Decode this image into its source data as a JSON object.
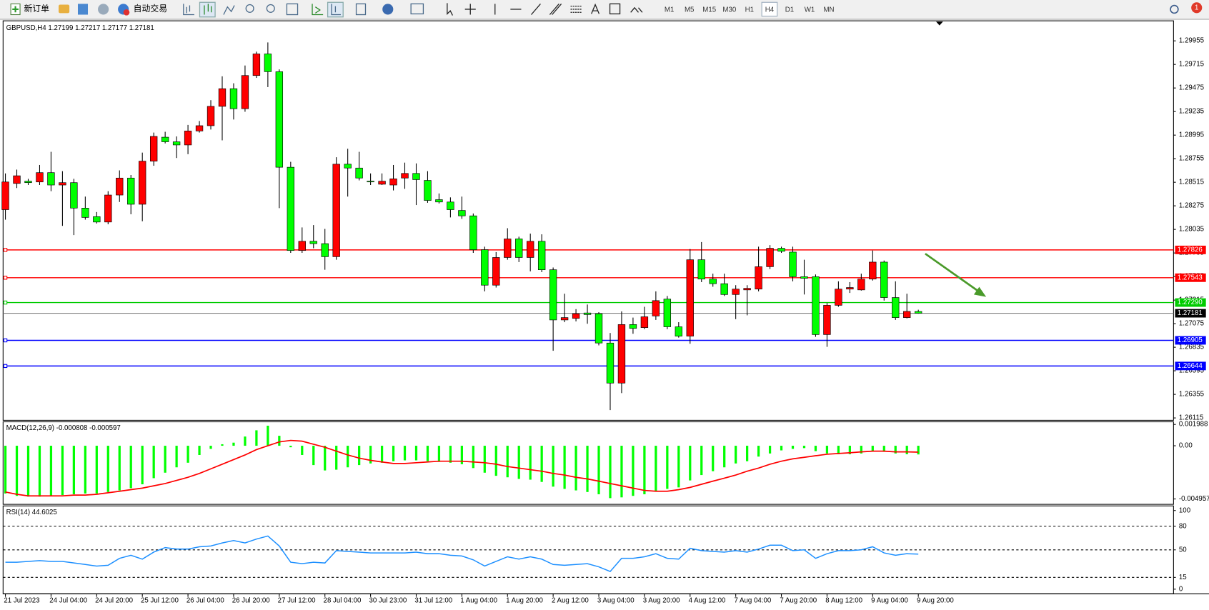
{
  "toolbar": {
    "new_order": "新订单",
    "auto_trading": "自动交易",
    "timeframes": [
      "M1",
      "M5",
      "M15",
      "M30",
      "H1",
      "H4",
      "D1",
      "W1",
      "MN"
    ],
    "selected_timeframe": "H4",
    "notifications": "1"
  },
  "chart_data": [
    {
      "type": "candlestick",
      "symbol": "GBPUSD,H4",
      "categories": [
        "21 Jul 2023",
        null,
        null,
        null,
        "24 Jul 04:00",
        null,
        null,
        null,
        "24 Jul 20:00",
        null,
        null,
        null,
        "25 Jul 12:00",
        null,
        null,
        null,
        "26 Jul 04:00",
        null,
        null,
        null,
        "26 Jul 20:00",
        null,
        null,
        null,
        "27 Jul 12:00",
        null,
        null,
        null,
        "28 Jul 04:00",
        null,
        null,
        null,
        "30 Jul 23:00",
        null,
        null,
        null,
        "31 Jul 12:00",
        null,
        null,
        null,
        "1 Aug 04:00",
        null,
        null,
        null,
        "1 Aug 20:00",
        null,
        null,
        null,
        "2 Aug 12:00",
        null,
        null,
        null,
        "3 Aug 04:00",
        null,
        null,
        null,
        "3 Aug 20:00",
        null,
        null,
        null,
        "4 Aug 12:00",
        null,
        null,
        null,
        "7 Aug 04:00",
        null,
        null,
        null,
        "7 Aug 20:00",
        null,
        null,
        null,
        "8 Aug 12:00",
        null,
        null,
        null,
        "9 Aug 04:00",
        null,
        null,
        null,
        "9 Aug 20:00"
      ],
      "open": [
        1.28236,
        1.28503,
        1.28526,
        1.28518,
        1.28613,
        1.28487,
        1.28511,
        1.28252,
        1.28165,
        1.2811,
        1.28385,
        1.28558,
        1.28291,
        1.2873,
        1.28974,
        1.28927,
        1.28895,
        1.29037,
        1.29091,
        1.29288,
        1.29468,
        1.29264,
        1.29602,
        1.29822,
        1.29641,
        1.28668,
        1.2782,
        1.27914,
        1.2789,
        1.27757,
        1.28699,
        1.2866,
        1.28526,
        1.28495,
        1.28487,
        1.28558,
        1.28605,
        1.28534,
        1.28338,
        1.28314,
        1.28228,
        1.28173,
        1.27828,
        1.27467,
        1.27749,
        1.27938,
        1.27749,
        1.27914,
        1.27624,
        1.27113,
        1.27129,
        1.27184,
        1.27176,
        1.26878,
        1.2647,
        1.27066,
        1.27035,
        1.27153,
        1.27325,
        1.27043,
        1.26948,
        1.27726,
        1.27529,
        1.27482,
        1.27372,
        1.27419,
        1.27427,
        1.27655,
        1.27843,
        1.27804,
        1.27553,
        1.27553,
        1.26964,
        1.27262,
        1.27427,
        1.27419,
        1.27529,
        1.27702,
        1.27341,
        1.27137,
        1.27199
      ],
      "high": [
        1.28605,
        1.28644,
        1.2855,
        1.28691,
        1.28825,
        1.28628,
        1.2855,
        1.28369,
        1.28212,
        1.28424,
        1.28636,
        1.28589,
        1.28817,
        1.29021,
        1.29029,
        1.28982,
        1.29099,
        1.29139,
        1.29351,
        1.29594,
        1.29523,
        1.29704,
        1.29845,
        1.29939,
        1.29665,
        1.28723,
        1.28055,
        1.28079,
        1.2804,
        1.2877,
        1.28856,
        1.28825,
        1.28605,
        1.28605,
        1.28691,
        1.28715,
        1.28707,
        1.28628,
        1.28401,
        1.28361,
        1.28369,
        1.28197,
        1.27859,
        1.27804,
        1.28047,
        1.27961,
        1.27992,
        1.27985,
        1.27647,
        1.2738,
        1.27223,
        1.2727,
        1.27192,
        1.2698,
        1.272,
        1.27137,
        1.27247,
        1.27404,
        1.27357,
        1.2709,
        1.27835,
        1.27906,
        1.27584,
        1.27584,
        1.27467,
        1.27467,
        1.27859,
        1.27875,
        1.27859,
        1.27859,
        1.27726,
        1.27576,
        1.27286,
        1.27506,
        1.27498,
        1.27584,
        1.2782,
        1.27718,
        1.27506,
        1.2738,
        1.27217
      ],
      "low": [
        1.28134,
        1.28456,
        1.28487,
        1.28487,
        1.28424,
        1.28071,
        1.27977,
        1.28134,
        1.28095,
        1.28087,
        1.28314,
        1.28189,
        1.28118,
        1.28683,
        1.28911,
        1.28762,
        1.28801,
        1.29021,
        1.29052,
        1.28942,
        1.29154,
        1.29233,
        1.29578,
        1.29484,
        1.28252,
        1.27796,
        1.27796,
        1.27843,
        1.27624,
        1.27726,
        1.28369,
        1.28534,
        1.28487,
        1.28487,
        1.28432,
        1.28448,
        1.28283,
        1.28306,
        1.28299,
        1.28157,
        1.28142,
        1.27796,
        1.27404,
        1.27443,
        1.27726,
        1.27702,
        1.27608,
        1.276,
        1.26799,
        1.2709,
        1.27098,
        1.27074,
        1.26854,
        1.26195,
        1.26368,
        1.26972,
        1.27019,
        1.27113,
        1.27019,
        1.26933,
        1.2687,
        1.27498,
        1.27451,
        1.27357,
        1.27121,
        1.2716,
        1.27404,
        1.27631,
        1.27796,
        1.27506,
        1.27372,
        1.26941,
        1.26839,
        1.27247,
        1.27388,
        1.27412,
        1.27514,
        1.2731,
        1.27113,
        1.27129,
        1.27177
      ],
      "close": [
        1.28518,
        1.28581,
        1.28511,
        1.28613,
        1.28487,
        1.28511,
        1.28252,
        1.28157,
        1.2811,
        1.28385,
        1.28558,
        1.28291,
        1.2873,
        1.28982,
        1.28927,
        1.28895,
        1.29037,
        1.29091,
        1.29288,
        1.29468,
        1.29264,
        1.29602,
        1.29822,
        1.29641,
        1.28668,
        1.2782,
        1.27914,
        1.2789,
        1.27757,
        1.28699,
        1.2866,
        1.28558,
        1.28518,
        1.28526,
        1.2855,
        1.28605,
        1.28542,
        1.2833,
        1.28314,
        1.28236,
        1.28173,
        1.27828,
        1.27467,
        1.27749,
        1.27938,
        1.27749,
        1.27914,
        1.27624,
        1.27113,
        1.27137,
        1.27176,
        1.27168,
        1.26878,
        1.2647,
        1.27066,
        1.27027,
        1.27145,
        1.2731,
        1.27043,
        1.26948,
        1.27726,
        1.27529,
        1.27482,
        1.27372,
        1.27427,
        1.27435,
        1.27655,
        1.27843,
        1.27812,
        1.27553,
        1.27537,
        1.26964,
        1.27262,
        1.27427,
        1.27443,
        1.27529,
        1.27702,
        1.27341,
        1.27137,
        1.272,
        1.27181
      ],
      "up_color": "#ff0000",
      "down_color": "#00ff00",
      "ylim": [
        1.26091,
        1.30159
      ],
      "yticks": [
        1.29955,
        1.29715,
        1.29475,
        1.29235,
        1.28995,
        1.28755,
        1.28515,
        1.28275,
        1.28035,
        1.27795,
        1.27555,
        1.27315,
        1.27075,
        1.26835,
        1.26595,
        1.26355,
        1.26115
      ],
      "levels": [
        {
          "value": 1.27826,
          "color": "#ff0000"
        },
        {
          "value": 1.27543,
          "color": "#ff0000"
        },
        {
          "value": 1.2729,
          "label": "1.27290",
          "color": "#00cc00"
        },
        {
          "value": 1.26905,
          "color": "#0000ff"
        },
        {
          "value": 1.26644,
          "color": "#0000ff"
        }
      ]
    },
    {
      "type": "macd",
      "title": "MACD(12,26,9)",
      "histogram": [
        -0.00445,
        -0.00467,
        -0.00474,
        -0.00474,
        -0.00467,
        -0.0046,
        -0.00452,
        -0.00445,
        -0.00445,
        -0.00431,
        -0.00416,
        -0.00395,
        -0.00359,
        -0.00302,
        -0.00251,
        -0.00201,
        -0.00158,
        -0.00086,
        -0.00029,
        0.00014,
        0.00029,
        0.00086,
        0.00144,
        0.00187,
        0.00093,
        -0.00014,
        -0.00086,
        -0.0018,
        -0.0023,
        -0.00223,
        -0.00201,
        -0.0018,
        -0.00165,
        -0.00158,
        -0.00144,
        -0.00136,
        -0.00136,
        -0.00144,
        -0.00151,
        -0.00158,
        -0.00172,
        -0.00208,
        -0.00251,
        -0.0028,
        -0.00294,
        -0.00309,
        -0.00316,
        -0.00337,
        -0.00381,
        -0.00402,
        -0.00416,
        -0.00431,
        -0.00452,
        -0.00488,
        -0.00481,
        -0.00467,
        -0.00452,
        -0.00424,
        -0.00402,
        -0.00388,
        -0.00323,
        -0.00273,
        -0.00237,
        -0.00201,
        -0.00165,
        -0.00144,
        -0.00101,
        -0.00072,
        -0.00043,
        -0.00029,
        -0.00022,
        -0.0005,
        -0.00072,
        -0.00079,
        -0.00079,
        -0.00072,
        -0.0005,
        -0.00057,
        -0.00072,
        -0.00079,
        -0.000808
      ],
      "signal": [
        -0.00431,
        -0.00452,
        -0.00467,
        -0.00467,
        -0.00467,
        -0.00467,
        -0.0046,
        -0.0046,
        -0.00452,
        -0.00438,
        -0.00424,
        -0.00409,
        -0.00395,
        -0.00373,
        -0.00352,
        -0.00323,
        -0.00294,
        -0.00258,
        -0.00215,
        -0.00172,
        -0.00129,
        -0.00086,
        -0.00036,
        0,
        0.00036,
        0.0005,
        0.00043,
        0.00014,
        -0.00014,
        -0.0005,
        -0.00086,
        -0.00115,
        -0.00136,
        -0.00151,
        -0.00165,
        -0.00165,
        -0.00158,
        -0.00151,
        -0.00144,
        -0.00144,
        -0.00144,
        -0.00151,
        -0.00158,
        -0.00172,
        -0.00194,
        -0.00208,
        -0.00223,
        -0.00237,
        -0.00258,
        -0.00273,
        -0.00294,
        -0.00309,
        -0.0033,
        -0.00352,
        -0.00373,
        -0.00395,
        -0.00416,
        -0.00424,
        -0.00424,
        -0.00409,
        -0.00388,
        -0.00359,
        -0.0033,
        -0.00302,
        -0.00273,
        -0.00237,
        -0.00208,
        -0.00172,
        -0.00144,
        -0.00122,
        -0.00108,
        -0.00093,
        -0.00079,
        -0.00072,
        -0.00065,
        -0.00057,
        -0.0005,
        -0.0005,
        -0.00057,
        -0.00057,
        -0.000597
      ],
      "histogram_color": "#00ff00",
      "signal_color": "#ff0000",
      "ylim": [
        -0.00546,
        0.00223
      ],
      "yticks": [
        0.001988,
        {
          "value": 0,
          "label": "0.00"
        },
        -0.004957
      ]
    },
    {
      "type": "line",
      "title": "RSI(14)",
      "values": [
        34.3,
        34.3,
        35.3,
        36.3,
        35.3,
        35.3,
        33.3,
        31.4,
        29.4,
        30.4,
        39.2,
        43.1,
        38.2,
        47.1,
        52.9,
        51,
        51,
        53.9,
        54.9,
        58.8,
        61.8,
        58.8,
        63.7,
        67.6,
        54.9,
        34.3,
        32.4,
        34.3,
        33.3,
        49,
        48,
        47.1,
        46.1,
        46.1,
        46.1,
        46.1,
        47.1,
        45.1,
        45.1,
        43.1,
        42.2,
        37.3,
        29.4,
        35.3,
        41.2,
        38.2,
        41.2,
        38.2,
        31.4,
        30.4,
        31.4,
        32.4,
        28.4,
        22.5,
        39.2,
        39.2,
        41.2,
        45.1,
        39.2,
        38.2,
        52,
        49,
        48,
        47.1,
        49,
        47.1,
        51,
        55.9,
        55.9,
        49,
        50,
        39.2,
        45.1,
        49,
        49,
        50,
        53.9,
        46.1,
        43.1,
        45.1,
        44.6025
      ],
      "color": "#1e90ff",
      "ylim": [
        0,
        100
      ],
      "yticks": [
        100,
        80,
        50,
        15,
        0
      ],
      "levels": [
        80,
        50,
        15
      ]
    }
  ]
}
